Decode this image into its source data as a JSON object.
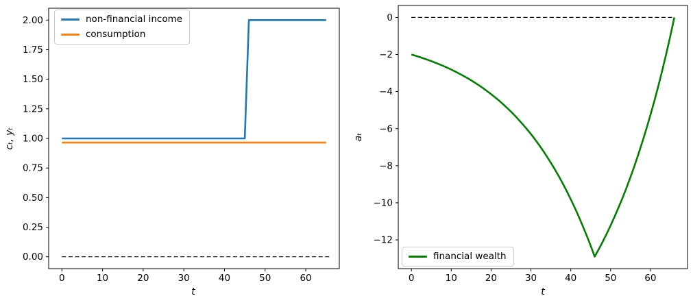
{
  "figure": {
    "background": "#ffffff"
  },
  "chart_data": [
    {
      "type": "line",
      "title": "",
      "xlabel": "t",
      "ylabel": "cₜ, yₜ",
      "xlim": [
        -3.25,
        68.25
      ],
      "ylim": [
        -0.1,
        2.1
      ],
      "xticks": [
        0,
        10,
        20,
        30,
        40,
        50,
        60
      ],
      "xtick_labels": [
        "0",
        "10",
        "20",
        "30",
        "40",
        "50",
        "60"
      ],
      "ytick_values": [
        0.0,
        0.25,
        0.5,
        0.75,
        1.0,
        1.25,
        1.5,
        1.75,
        2.0
      ],
      "ytick_labels": [
        "0.00",
        "0.25",
        "0.50",
        "0.75",
        "1.00",
        "1.25",
        "1.50",
        "1.75",
        "2.00"
      ],
      "grid": false,
      "legend_position": "upper-left",
      "series": [
        {
          "name": "non-financial income",
          "color": "#1f77b4",
          "line_width": 2.6,
          "points": [
            [
              0,
              1
            ],
            [
              45,
              1
            ],
            [
              46,
              2
            ],
            [
              65,
              2
            ]
          ]
        },
        {
          "name": "consumption",
          "color": "#ff7f0e",
          "line_width": 2.6,
          "points": [
            [
              0,
              0.9646
            ],
            [
              65,
              0.9646
            ]
          ]
        }
      ],
      "zero_line": {
        "color": "#000000",
        "style": "dashed",
        "points": [
          [
            0,
            0
          ],
          [
            66,
            0
          ]
        ]
      }
    },
    {
      "type": "line",
      "title": "",
      "xlabel": "t",
      "ylabel": "aₜ",
      "xlim": [
        -3.3,
        69.3
      ],
      "ylim": [
        -13.55,
        0.645
      ],
      "xticks": [
        0,
        10,
        20,
        30,
        40,
        50,
        60
      ],
      "xtick_labels": [
        "0",
        "10",
        "20",
        "30",
        "40",
        "50",
        "60"
      ],
      "ytick_values": [
        0,
        -2,
        -4,
        -6,
        -8,
        -10,
        -12
      ],
      "ytick_labels": [
        "0",
        "−2",
        "−4",
        "−6",
        "−8",
        "−10",
        "−12"
      ],
      "grid": false,
      "legend_position": "lower-left",
      "series": [
        {
          "name": "financial wealth",
          "color": "#008000",
          "line_width": 2.6,
          "x0": 0,
          "dx": 1,
          "values": [
            -2.0,
            -2.065,
            -2.133,
            -2.204,
            -2.279,
            -2.357,
            -2.44,
            -2.526,
            -2.617,
            -2.713,
            -2.813,
            -2.918,
            -3.029,
            -3.145,
            -3.267,
            -3.395,
            -3.529,
            -3.67,
            -3.818,
            -3.974,
            -4.137,
            -4.309,
            -4.489,
            -4.678,
            -4.877,
            -5.085,
            -5.304,
            -5.534,
            -5.775,
            -6.028,
            -6.294,
            -6.574,
            -6.867,
            -7.175,
            -7.499,
            -7.838,
            -8.195,
            -8.569,
            -8.962,
            -9.375,
            -9.808,
            -10.263,
            -10.741,
            -11.243,
            -11.769,
            -12.322,
            -12.904,
            -12.514,
            -12.104,
            -11.674,
            -11.223,
            -10.748,
            -10.25,
            -9.728,
            -9.179,
            -8.602,
            -7.997,
            -7.361,
            -6.694,
            -5.993,
            -5.258,
            -4.485,
            -3.674,
            -2.822,
            -1.928,
            -0.989,
            0.0
          ]
        }
      ],
      "zero_line": {
        "color": "#000000",
        "style": "dashed",
        "points": [
          [
            0,
            0
          ],
          [
            66,
            0
          ]
        ]
      }
    }
  ],
  "legend_left": {
    "income_label": "non-financial income",
    "consumption_label": "consumption"
  },
  "legend_right": {
    "wealth_label": "financial wealth"
  }
}
